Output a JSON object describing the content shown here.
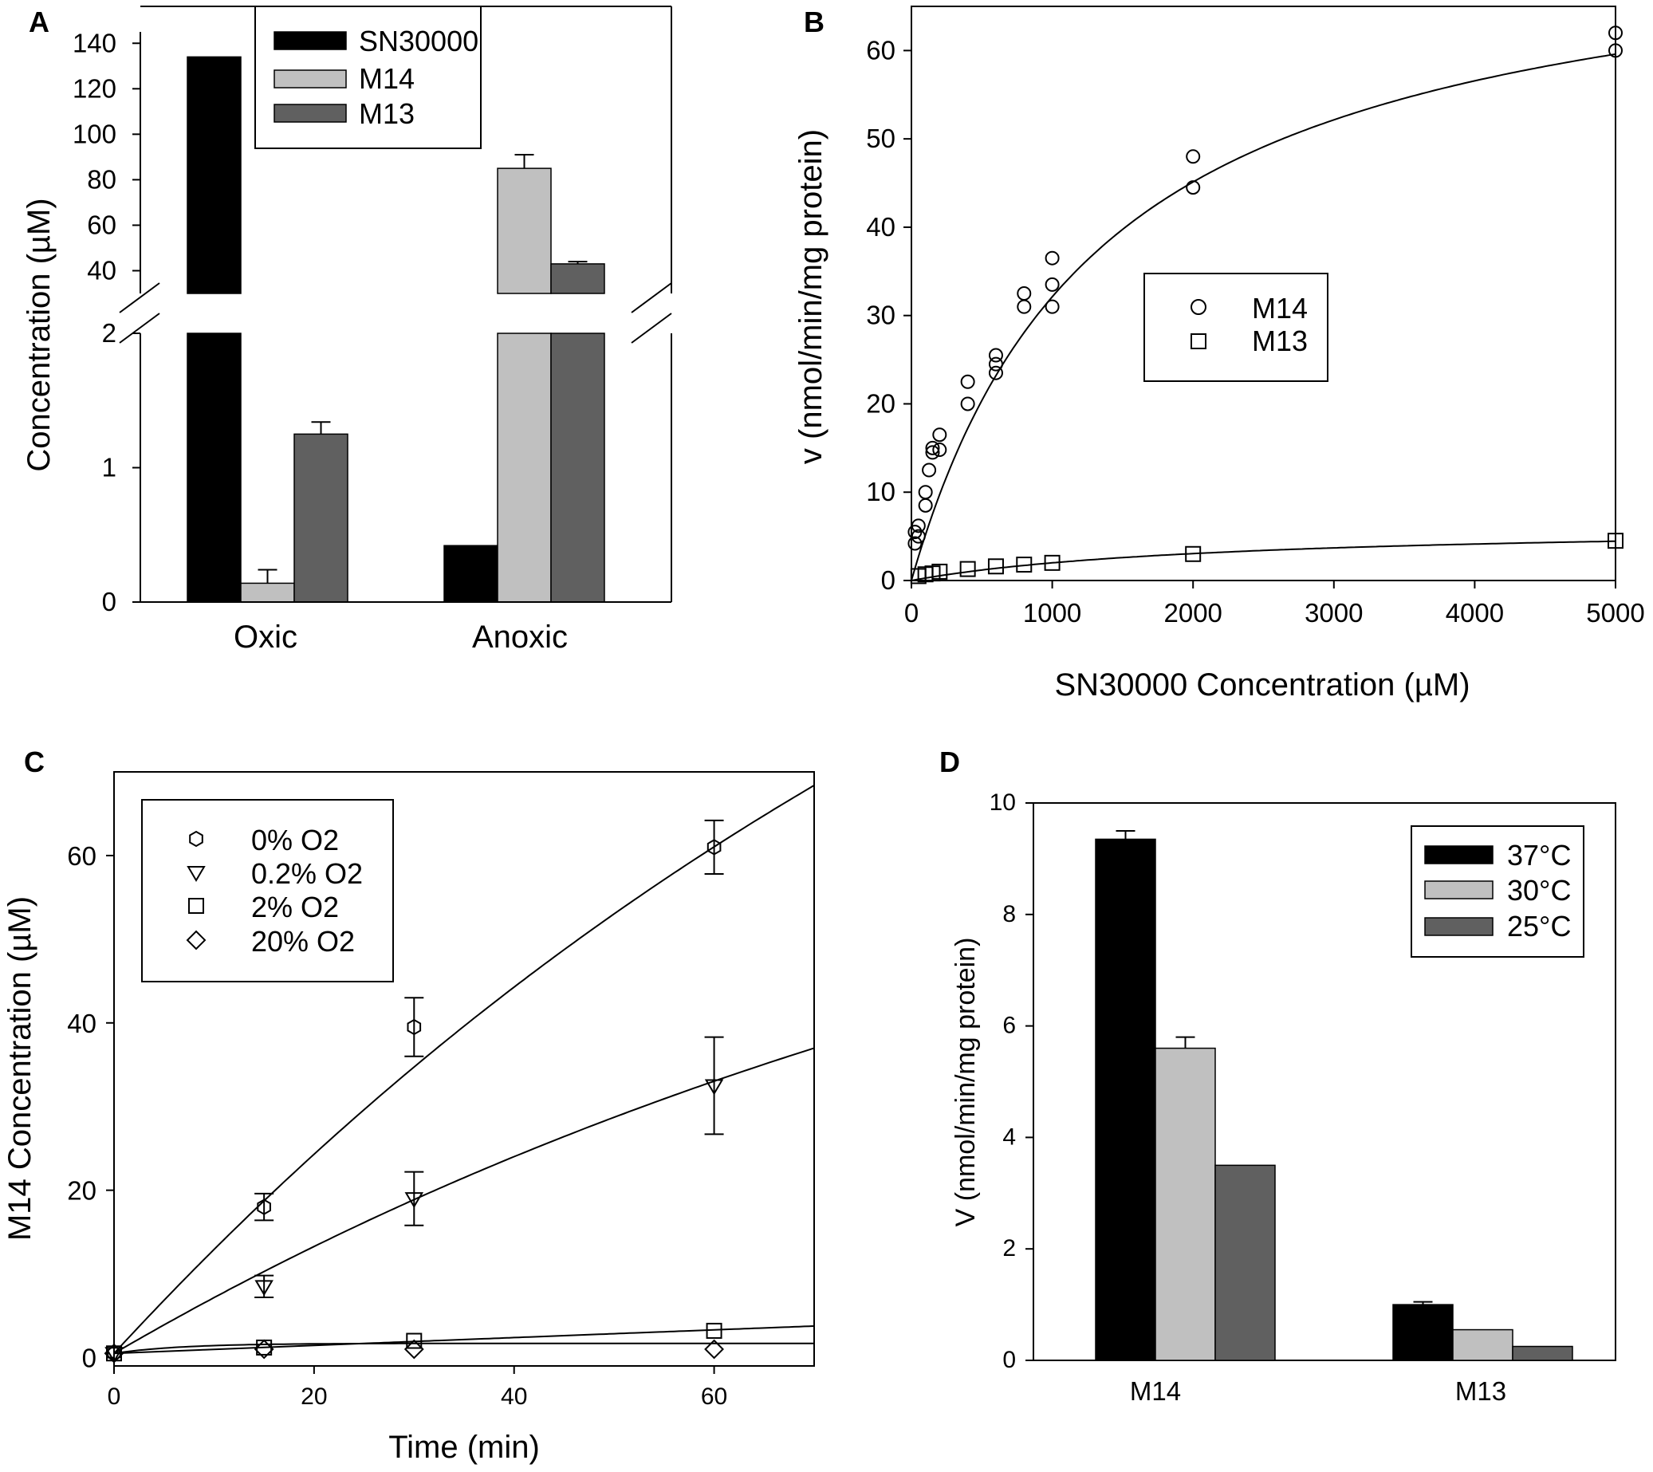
{
  "figure": {
    "panel_labels": [
      "A",
      "B",
      "C",
      "D"
    ]
  },
  "colors": {
    "black": "#000000",
    "light_gray": "#c0c0c0",
    "dark_gray": "#606060",
    "white": "#ffffff"
  },
  "chart_data": [
    {
      "panel": "A",
      "type": "bar",
      "broken_axis": true,
      "ylabel": "Concentration (µM)",
      "categories": [
        "Oxic",
        "Anoxic"
      ],
      "lower_segment": {
        "ylim": [
          0,
          2
        ],
        "ticks": [
          "0",
          "1",
          "2"
        ]
      },
      "upper_segment": {
        "ylim": [
          30,
          145
        ],
        "ticks": [
          "40",
          "60",
          "80",
          "100",
          "120",
          "140"
        ]
      },
      "series": [
        {
          "name": "SN30000",
          "color": "#000000",
          "values": [
            134,
            0.42
          ],
          "errors": [
            0,
            0
          ]
        },
        {
          "name": "M14",
          "color": "#c0c0c0",
          "values": [
            0.14,
            85
          ],
          "errors": [
            0.1,
            6
          ]
        },
        {
          "name": "M13",
          "color": "#606060",
          "values": [
            1.25,
            43
          ],
          "errors": [
            0.09,
            1
          ]
        }
      ],
      "legend": [
        "SN30000",
        "M14",
        "M13"
      ]
    },
    {
      "panel": "B",
      "type": "scatter",
      "xlabel": "SN30000 Concentration (µM)",
      "ylabel": "v (nmol/min/mg protein)",
      "xlim": [
        0,
        5000
      ],
      "ylim": [
        0,
        65
      ],
      "xticks": [
        "0",
        "1000",
        "2000",
        "3000",
        "4000",
        "5000"
      ],
      "yticks": [
        "0",
        "10",
        "20",
        "30",
        "40",
        "50",
        "60"
      ],
      "series": [
        {
          "name": "M14",
          "marker": "circle",
          "x": [
            25,
            25,
            50,
            50,
            100,
            100,
            125,
            150,
            150,
            200,
            200,
            400,
            400,
            600,
            600,
            600,
            800,
            800,
            1000,
            1000,
            1000,
            2000,
            2000,
            5000,
            5000
          ],
          "y": [
            4.2,
            5.5,
            5,
            6.2,
            8.5,
            10,
            12.5,
            14.5,
            15,
            14.8,
            16.5,
            20,
            22.5,
            23.5,
            24.5,
            25.5,
            31,
            32.5,
            31,
            33.5,
            36.5,
            44.5,
            48,
            60,
            62
          ],
          "fit": {
            "model": "michaelis-menten",
            "Vmax": 75.8,
            "Km": 1360
          }
        },
        {
          "name": "M13",
          "marker": "square",
          "x": [
            50,
            100,
            150,
            200,
            400,
            600,
            800,
            1000,
            2000,
            5000
          ],
          "y": [
            0.5,
            0.7,
            0.8,
            1,
            1.3,
            1.6,
            1.8,
            2,
            3,
            4.5
          ],
          "fit": {
            "model": "michaelis-menten",
            "Vmax": 6.4,
            "Km": 2200
          }
        }
      ],
      "legend": [
        "M14",
        "M13"
      ]
    },
    {
      "panel": "C",
      "type": "line",
      "xlabel": "Time (min)",
      "ylabel": "M14 Concentration (µM)",
      "xlim": [
        0,
        70
      ],
      "ylim": [
        -1,
        70
      ],
      "xticks": [
        "0",
        "20",
        "40",
        "60"
      ],
      "yticks": [
        "0",
        "20",
        "40",
        "60"
      ],
      "series": [
        {
          "name": "0% O2",
          "marker": "hexagon",
          "x": [
            0,
            15,
            30,
            60
          ],
          "y": [
            0.5,
            18,
            39.5,
            61
          ],
          "errors": [
            0,
            1.6,
            3.5,
            3.2
          ],
          "fit": {
            "A": 148.1,
            "k": 0.00876
          }
        },
        {
          "name": "0.2% O2",
          "marker": "triangle-down",
          "x": [
            0,
            15,
            30,
            60
          ],
          "y": [
            0.5,
            8.5,
            19,
            32.5
          ],
          "errors": [
            0,
            1.3,
            3.2,
            5.8
          ],
          "fit": {
            "A": 80,
            "k": 0.0087
          }
        },
        {
          "name": "2% O2",
          "marker": "square",
          "x": [
            0,
            15,
            30,
            60
          ],
          "y": [
            0.5,
            1.2,
            2,
            3.2
          ],
          "errors": [
            0,
            0,
            0,
            0
          ],
          "fit": {
            "A": 60,
            "k": 0.0008
          }
        },
        {
          "name": "20% O2",
          "marker": "diamond",
          "x": [
            0,
            15,
            30,
            60
          ],
          "y": [
            0.5,
            1,
            1,
            1
          ],
          "errors": [
            0,
            0,
            0,
            0
          ],
          "fit": {
            "A": 1.2,
            "k": 0.15
          }
        }
      ],
      "legend": [
        "0% O2",
        "0.2% O2",
        "2% O2",
        "20% O2"
      ]
    },
    {
      "panel": "D",
      "type": "bar",
      "ylabel": "V (nmol/min/mg protein)",
      "categories": [
        "M14",
        "M13"
      ],
      "ylim": [
        0,
        10
      ],
      "yticks": [
        "0",
        "2",
        "4",
        "6",
        "8",
        "10"
      ],
      "series": [
        {
          "name": "37°C",
          "color": "#000000",
          "values": [
            9.35,
            1.0
          ],
          "errors": [
            0.15,
            0.05
          ]
        },
        {
          "name": "30°C",
          "color": "#c0c0c0",
          "values": [
            5.6,
            0.55
          ],
          "errors": [
            0.2,
            0
          ]
        },
        {
          "name": "25°C",
          "color": "#606060",
          "values": [
            3.5,
            0.25
          ],
          "errors": [
            0,
            0
          ]
        }
      ],
      "legend": [
        "37°C",
        "30°C",
        "25°C"
      ]
    }
  ]
}
